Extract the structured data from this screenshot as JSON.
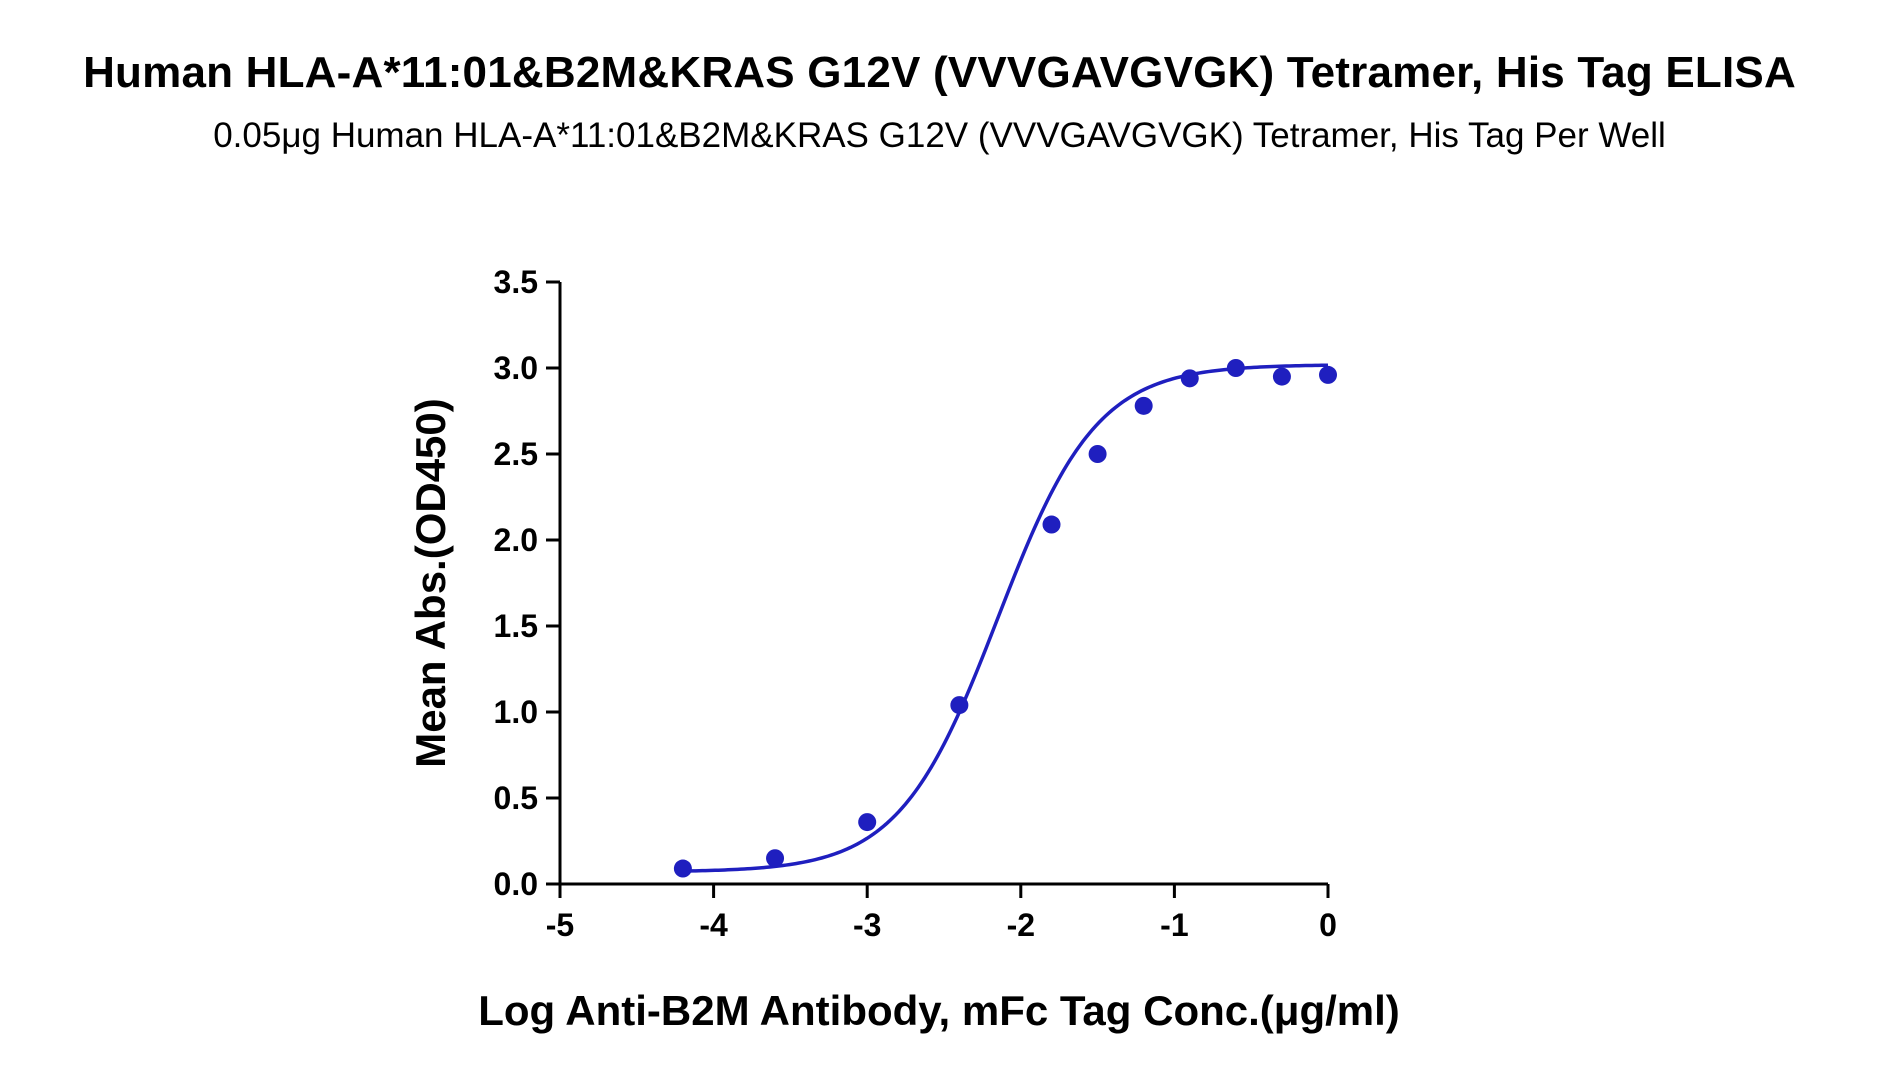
{
  "chart_data": {
    "type": "scatter",
    "title": "Human HLA-A*11:01&B2M&KRAS G12V (VVVGAVGVGK) Tetramer, His Tag ELISA",
    "subtitle": "0.05μg Human HLA-A*11:01&B2M&KRAS G12V (VVVGAVGVGK) Tetramer, His Tag Per Well",
    "xlabel": "Log Anti-B2M Antibody, mFc Tag Conc.(μg/ml)",
    "ylabel": "Mean Abs.(OD450)",
    "xlim": [
      -5,
      0
    ],
    "ylim": [
      0,
      3.5
    ],
    "x_ticks": [
      -5,
      -4,
      -3,
      -2,
      -1,
      0
    ],
    "x_tick_labels": [
      "-5",
      "-4",
      "-3",
      "-2",
      "-1",
      "0"
    ],
    "y_ticks": [
      0,
      0.5,
      1.0,
      1.5,
      2.0,
      2.5,
      3.0,
      3.5
    ],
    "y_tick_labels": [
      "0.0",
      "0.5",
      "1.0",
      "1.5",
      "2.0",
      "2.5",
      "3.0",
      "3.5"
    ],
    "grid": false,
    "series": [
      {
        "color": "#1f1fbf",
        "points": [
          {
            "x": -4.2,
            "y": 0.09
          },
          {
            "x": -3.6,
            "y": 0.15
          },
          {
            "x": -3.0,
            "y": 0.36
          },
          {
            "x": -2.4,
            "y": 1.04
          },
          {
            "x": -1.8,
            "y": 2.09
          },
          {
            "x": -1.5,
            "y": 2.5
          },
          {
            "x": -1.2,
            "y": 2.78
          },
          {
            "x": -0.9,
            "y": 2.94
          },
          {
            "x": -0.6,
            "y": 3.0
          },
          {
            "x": -0.3,
            "y": 2.95
          },
          {
            "x": 0.0,
            "y": 2.96
          }
        ],
        "fit_curve": {
          "model": "4PL",
          "bottom": 0.07,
          "top": 3.02,
          "log_ec50": -2.15,
          "hill_slope": 1.35,
          "x_range": [
            -4.2,
            0.0
          ]
        }
      }
    ]
  }
}
